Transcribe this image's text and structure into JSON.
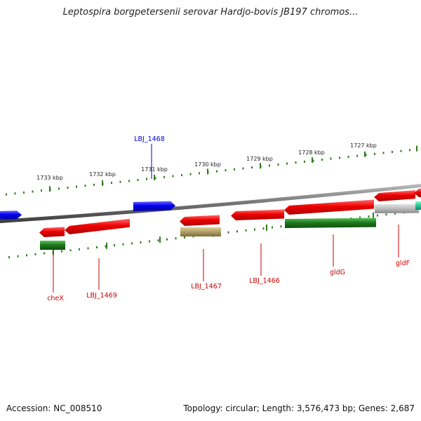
{
  "title": "Leptospira borgpetersenii serovar Hardjo-bovis JB197 chromos...",
  "footer": {
    "accession": "Accession: NC_008510",
    "summary": "Topology: circular; Length: 3,576,473 bp; Genes: 2,687"
  },
  "scale_labels": [
    "1733 kbp",
    "1732 kbp",
    "1731 kbp",
    "1730 kbp",
    "1729 kbp",
    "1728 kbp",
    "1727 kbp"
  ],
  "gene_labels": [
    "LBJ_1468",
    "cheX",
    "LBJ_1469",
    "LBJ_1467",
    "LBJ_1466",
    "gldG",
    "gldF"
  ],
  "colors": {
    "forward_gene": "#0000ee",
    "reverse_gene": "#ee0000",
    "tick": "#2e7d1a",
    "backbone": "#7a7a7a",
    "gene_label_forward": "#0000cc",
    "gene_label_reverse": "#cc0000",
    "cds_green": "#1f7a1f",
    "cds_khaki": "#b5a36a",
    "cds_grey": "#c0c0c0",
    "cds_teal": "#2ecc9a"
  }
}
